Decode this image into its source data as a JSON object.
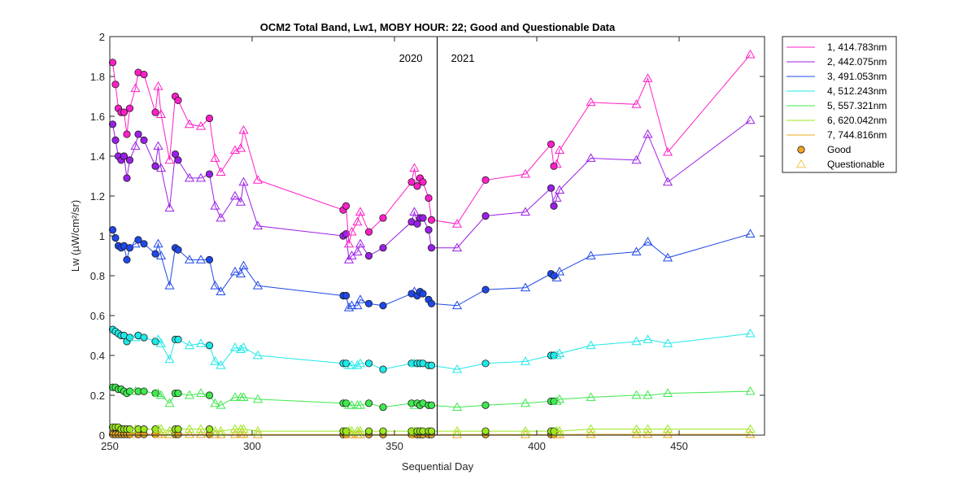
{
  "chart_data": {
    "type": "line",
    "title": "OCM2 Total Band,  Lw1, MOBY HOUR: 22;  Good and Questionable Data",
    "xlabel": "Sequential Day",
    "ylabel": "Lw (µW/cm²/sr)",
    "xlim": [
      250,
      480
    ],
    "ylim": [
      0,
      2
    ],
    "xticks": [
      250,
      300,
      350,
      400,
      450
    ],
    "yticks": [
      0,
      0.2,
      0.4,
      0.6,
      0.8,
      1,
      1.2,
      1.4,
      1.6,
      1.8,
      2
    ],
    "grid": false,
    "legend_position": "outside-right-top",
    "year_divider": {
      "x": 365,
      "labels": [
        "2020",
        "2021"
      ]
    },
    "quality_legend": [
      {
        "label": "Good",
        "marker": "circle",
        "color": "#f5a623"
      },
      {
        "label": "Questionable",
        "marker": "triangle",
        "color": "#f5c842"
      }
    ],
    "x": [
      251,
      252,
      253,
      254,
      255,
      256,
      257,
      259,
      260,
      262,
      266,
      267,
      268,
      271,
      273,
      274,
      278,
      282,
      285,
      287,
      289,
      294,
      296,
      297,
      302,
      332,
      333,
      334,
      335,
      337,
      338,
      341,
      346,
      356,
      357,
      358,
      359,
      360,
      362,
      363,
      372,
      382,
      396,
      405,
      406,
      407,
      408,
      419,
      435,
      439,
      446,
      475
    ],
    "quality": [
      "G",
      "G",
      "G",
      "G",
      "G",
      "G",
      "G",
      "Q",
      "G",
      "G",
      "G",
      "Q",
      "Q",
      "Q",
      "G",
      "G",
      "Q",
      "Q",
      "G",
      "Q",
      "Q",
      "Q",
      "Q",
      "Q",
      "Q",
      "G",
      "G",
      "Q",
      "Q",
      "Q",
      "Q",
      "G",
      "G",
      "G",
      "Q",
      "G",
      "G",
      "G",
      "G",
      "G",
      "Q",
      "G",
      "Q",
      "G",
      "G",
      "Q",
      "Q",
      "Q",
      "Q",
      "Q",
      "Q",
      "Q"
    ],
    "series": [
      {
        "name": "1, 414.783nm",
        "color": "#ff1fc8",
        "values": [
          1.87,
          1.76,
          1.64,
          1.62,
          1.62,
          1.51,
          1.64,
          1.74,
          1.82,
          1.81,
          1.62,
          1.75,
          1.61,
          1.38,
          1.7,
          1.68,
          1.56,
          1.55,
          1.59,
          1.39,
          1.32,
          1.43,
          1.44,
          1.53,
          1.28,
          1.13,
          1.15,
          0.96,
          1.02,
          1.07,
          1.12,
          1.02,
          1.09,
          1.27,
          1.34,
          1.25,
          1.29,
          1.27,
          1.19,
          1.08,
          1.06,
          1.28,
          1.31,
          1.46,
          1.35,
          1.36,
          1.43,
          1.67,
          1.66,
          1.79,
          1.42,
          1.91
        ]
      },
      {
        "name": "2, 442.075nm",
        "color": "#9b1fe8",
        "values": [
          1.56,
          1.48,
          1.4,
          1.38,
          1.4,
          1.29,
          1.38,
          1.45,
          1.51,
          1.48,
          1.35,
          1.45,
          1.34,
          1.14,
          1.41,
          1.38,
          1.29,
          1.29,
          1.31,
          1.15,
          1.09,
          1.2,
          1.17,
          1.27,
          1.05,
          1.0,
          1.01,
          0.88,
          0.9,
          0.92,
          0.96,
          0.9,
          0.94,
          1.07,
          1.12,
          1.06,
          1.09,
          1.09,
          1.03,
          0.94,
          0.94,
          1.1,
          1.12,
          1.24,
          1.15,
          1.19,
          1.23,
          1.39,
          1.38,
          1.51,
          1.27,
          1.58
        ]
      },
      {
        "name": "3, 491.053nm",
        "color": "#1f48e8",
        "values": [
          1.03,
          0.99,
          0.95,
          0.94,
          0.95,
          0.88,
          0.94,
          0.96,
          0.98,
          0.96,
          0.91,
          0.96,
          0.9,
          0.75,
          0.94,
          0.93,
          0.88,
          0.88,
          0.88,
          0.75,
          0.72,
          0.82,
          0.81,
          0.85,
          0.75,
          0.7,
          0.7,
          0.64,
          0.65,
          0.65,
          0.68,
          0.66,
          0.65,
          0.71,
          0.72,
          0.7,
          0.72,
          0.71,
          0.68,
          0.66,
          0.65,
          0.73,
          0.74,
          0.81,
          0.8,
          0.79,
          0.82,
          0.9,
          0.92,
          0.97,
          0.89,
          1.01
        ]
      },
      {
        "name": "4, 512.243nm",
        "color": "#1fe8e8",
        "values": [
          0.53,
          0.52,
          0.51,
          0.5,
          0.5,
          0.47,
          0.49,
          0.49,
          0.5,
          0.49,
          0.47,
          0.48,
          0.46,
          0.38,
          0.48,
          0.48,
          0.45,
          0.46,
          0.45,
          0.37,
          0.35,
          0.44,
          0.43,
          0.44,
          0.4,
          0.36,
          0.36,
          0.35,
          0.35,
          0.35,
          0.36,
          0.36,
          0.33,
          0.36,
          0.36,
          0.36,
          0.36,
          0.36,
          0.35,
          0.35,
          0.33,
          0.36,
          0.37,
          0.4,
          0.4,
          0.4,
          0.41,
          0.45,
          0.47,
          0.48,
          0.46,
          0.51
        ]
      },
      {
        "name": "5, 557.321nm",
        "color": "#3fe84f",
        "values": [
          0.24,
          0.24,
          0.23,
          0.23,
          0.22,
          0.21,
          0.22,
          0.22,
          0.22,
          0.22,
          0.21,
          0.21,
          0.2,
          0.16,
          0.21,
          0.21,
          0.2,
          0.21,
          0.2,
          0.16,
          0.15,
          0.19,
          0.19,
          0.19,
          0.18,
          0.16,
          0.16,
          0.15,
          0.15,
          0.15,
          0.15,
          0.16,
          0.14,
          0.16,
          0.15,
          0.16,
          0.15,
          0.16,
          0.15,
          0.15,
          0.14,
          0.15,
          0.16,
          0.17,
          0.17,
          0.17,
          0.18,
          0.19,
          0.2,
          0.2,
          0.21,
          0.22
        ]
      },
      {
        "name": "6, 620.042nm",
        "color": "#9be81f",
        "values": [
          0.04,
          0.04,
          0.04,
          0.03,
          0.03,
          0.03,
          0.03,
          0.03,
          0.03,
          0.03,
          0.03,
          0.03,
          0.03,
          0.02,
          0.03,
          0.03,
          0.03,
          0.03,
          0.03,
          0.02,
          0.02,
          0.03,
          0.03,
          0.03,
          0.02,
          0.02,
          0.02,
          0.02,
          0.02,
          0.02,
          0.02,
          0.02,
          0.02,
          0.02,
          0.02,
          0.02,
          0.02,
          0.02,
          0.02,
          0.02,
          0.02,
          0.02,
          0.02,
          0.02,
          0.02,
          0.02,
          0.02,
          0.03,
          0.03,
          0.03,
          0.03,
          0.03
        ]
      },
      {
        "name": "7, 744.816nm",
        "color": "#e8a81f",
        "values": [
          0.004,
          0.004,
          0.004,
          0.004,
          0.004,
          0.004,
          0.004,
          0.004,
          0.004,
          0.004,
          0.004,
          0.004,
          0.004,
          0.003,
          0.004,
          0.004,
          0.004,
          0.004,
          0.004,
          0.003,
          0.003,
          0.004,
          0.004,
          0.004,
          0.003,
          0.003,
          0.003,
          0.003,
          0.003,
          0.003,
          0.003,
          0.003,
          0.003,
          0.003,
          0.003,
          0.003,
          0.003,
          0.003,
          0.003,
          0.003,
          0.003,
          0.003,
          0.003,
          0.003,
          0.003,
          0.003,
          0.003,
          0.004,
          0.004,
          0.004,
          0.004,
          0.004
        ]
      }
    ]
  }
}
